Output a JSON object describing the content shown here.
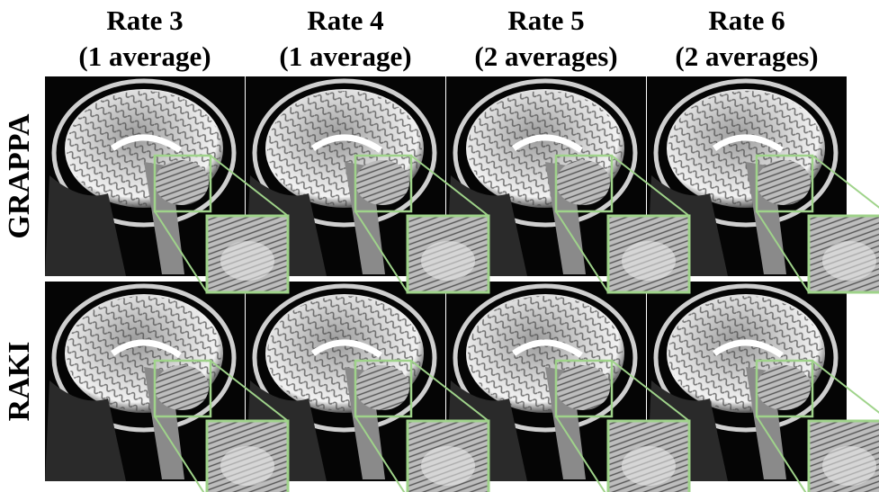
{
  "columns": [
    {
      "title": "Rate 3",
      "subtitle": "(1 average)"
    },
    {
      "title": "Rate 4",
      "subtitle": "(1 average)"
    },
    {
      "title": "Rate 5",
      "subtitle": "(2 averages)"
    },
    {
      "title": "Rate 6",
      "subtitle": "(2 averages)"
    }
  ],
  "rows": [
    "GRAPPA",
    "RAKI"
  ]
}
